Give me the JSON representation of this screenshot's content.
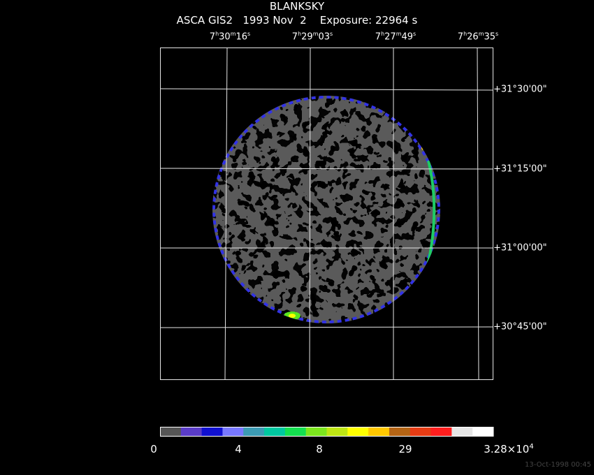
{
  "header": {
    "object": "BLANKSKY",
    "info": "ASCA GIS2   1993 Nov  2    Exposure: 22964 s"
  },
  "ra_labels": [
    {
      "h": "7",
      "m": "30",
      "s": "16"
    },
    {
      "h": "7",
      "m": "29",
      "s": "03"
    },
    {
      "h": "7",
      "m": "27",
      "s": "49"
    },
    {
      "h": "7",
      "m": "26",
      "s": "35"
    }
  ],
  "dec_labels": [
    "+31°30'00\"",
    "+31°15'00\"",
    "+31°00'00\"",
    "+30°45'00\""
  ],
  "colorbar": {
    "colors": [
      "#555555",
      "#5a3cc8",
      "#1010d0",
      "#7878ff",
      "#3c9bb4",
      "#00c8a0",
      "#14e050",
      "#7ce61e",
      "#bee614",
      "#ffff00",
      "#ffc800",
      "#b46414",
      "#e63c14",
      "#ff1e1e",
      "#e6e6e6",
      "#ffffff"
    ],
    "labels": [
      "0",
      "4",
      "8",
      "29",
      "3.28×10"
    ],
    "label_exp": "4"
  },
  "footer": {
    "timestamp": "13-Oct-1998 00:45"
  }
}
